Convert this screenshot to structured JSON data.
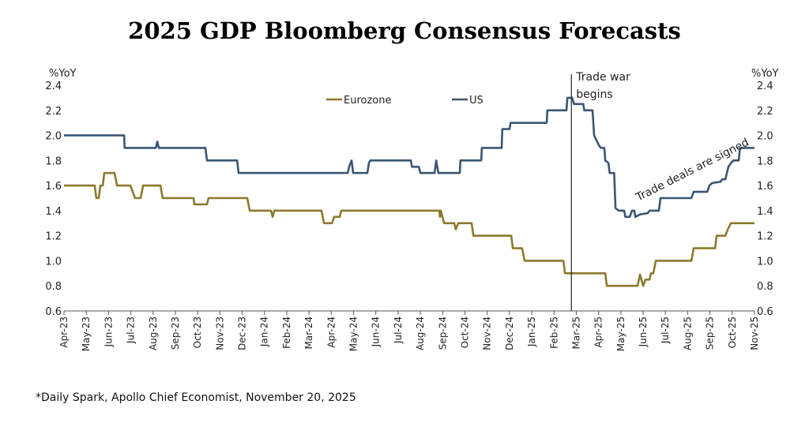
{
  "chart_data": {
    "type": "line",
    "title": "2025 GDP Bloomberg Consensus Forecasts",
    "ylabel_left": "%YoY",
    "ylabel_right": "%YoY",
    "ylim": [
      0.6,
      2.4
    ],
    "yticks": [
      "0.6",
      "0.8",
      "1.0",
      "1.2",
      "1.4",
      "1.6",
      "1.8",
      "2.0",
      "2.2",
      "2.4"
    ],
    "x_categories": [
      "Apr-23",
      "May-23",
      "Jun-23",
      "Jul-23",
      "Aug-23",
      "Sep-23",
      "Oct-23",
      "Nov-23",
      "Dec-23",
      "Jan-24",
      "Feb-24",
      "Mar-24",
      "Apr-24",
      "May-24",
      "Jun-24",
      "Jul-24",
      "Aug-24",
      "Sep-24",
      "Oct-24",
      "Nov-24",
      "Dec-24",
      "Jan-25",
      "Feb-25",
      "Mar-25",
      "Apr-25",
      "May-25",
      "Jun-25",
      "Jul-25",
      "Aug-25",
      "Sep-25",
      "Oct-25",
      "Nov-25"
    ],
    "x_unit": "months since Apr-23",
    "grid": false,
    "legend": "top-center",
    "series": [
      {
        "name": "Eurozone",
        "color": "#8C7A2E",
        "points": [
          [
            0,
            1.6
          ],
          [
            1.38,
            1.6
          ],
          [
            1.45,
            1.5
          ],
          [
            1.56,
            1.5
          ],
          [
            1.63,
            1.6
          ],
          [
            1.74,
            1.6
          ],
          [
            1.81,
            1.7
          ],
          [
            2.27,
            1.7
          ],
          [
            2.38,
            1.6
          ],
          [
            2.98,
            1.6
          ],
          [
            3.09,
            1.55
          ],
          [
            3.19,
            1.5
          ],
          [
            3.44,
            1.5
          ],
          [
            3.55,
            1.6
          ],
          [
            4.33,
            1.6
          ],
          [
            4.43,
            1.5
          ],
          [
            5.82,
            1.5
          ],
          [
            5.85,
            1.45
          ],
          [
            6.42,
            1.45
          ],
          [
            6.49,
            1.5
          ],
          [
            8.23,
            1.5
          ],
          [
            8.34,
            1.4
          ],
          [
            9.29,
            1.4
          ],
          [
            9.37,
            1.35
          ],
          [
            9.44,
            1.4
          ],
          [
            11.56,
            1.4
          ],
          [
            11.67,
            1.3
          ],
          [
            12.03,
            1.3
          ],
          [
            12.13,
            1.35
          ],
          [
            12.38,
            1.35
          ],
          [
            12.45,
            1.4
          ],
          [
            16.85,
            1.4
          ],
          [
            16.88,
            1.35
          ],
          [
            16.92,
            1.4
          ],
          [
            17.06,
            1.3
          ],
          [
            17.52,
            1.3
          ],
          [
            17.59,
            1.25
          ],
          [
            17.7,
            1.3
          ],
          [
            18.3,
            1.3
          ],
          [
            18.38,
            1.2
          ],
          [
            20.08,
            1.2
          ],
          [
            20.15,
            1.1
          ],
          [
            20.57,
            1.1
          ],
          [
            20.68,
            1.0
          ],
          [
            22.42,
            1.0
          ],
          [
            22.49,
            0.9
          ],
          [
            24.3,
            0.9
          ],
          [
            24.37,
            0.8
          ],
          [
            25.75,
            0.8
          ],
          [
            25.86,
            0.89
          ],
          [
            26.0,
            0.8
          ],
          [
            26.11,
            0.85
          ],
          [
            26.29,
            0.85
          ],
          [
            26.35,
            0.9
          ],
          [
            26.46,
            0.9
          ],
          [
            26.57,
            1.0
          ],
          [
            28.17,
            1.0
          ],
          [
            28.27,
            1.1
          ],
          [
            29.23,
            1.1
          ],
          [
            29.3,
            1.2
          ],
          [
            29.69,
            1.2
          ],
          [
            29.8,
            1.25
          ],
          [
            29.94,
            1.3
          ],
          [
            31,
            1.3
          ]
        ]
      },
      {
        "name": "US",
        "color": "#3A5674",
        "points": [
          [
            0,
            2.0
          ],
          [
            2.7,
            2.0
          ],
          [
            2.72,
            1.9
          ],
          [
            4.12,
            1.9
          ],
          [
            4.19,
            1.95
          ],
          [
            4.26,
            1.9
          ],
          [
            6.35,
            1.9
          ],
          [
            6.42,
            1.8
          ],
          [
            7.77,
            1.8
          ],
          [
            7.84,
            1.7
          ],
          [
            12.74,
            1.7
          ],
          [
            12.8,
            1.75
          ],
          [
            12.91,
            1.8
          ],
          [
            12.98,
            1.7
          ],
          [
            13.62,
            1.7
          ],
          [
            13.69,
            1.78
          ],
          [
            13.75,
            1.8
          ],
          [
            15.57,
            1.8
          ],
          [
            15.62,
            1.75
          ],
          [
            15.93,
            1.75
          ],
          [
            16.0,
            1.7
          ],
          [
            16.64,
            1.7
          ],
          [
            16.71,
            1.8
          ],
          [
            16.81,
            1.7
          ],
          [
            17.77,
            1.7
          ],
          [
            17.8,
            1.8
          ],
          [
            18.73,
            1.8
          ],
          [
            18.76,
            1.9
          ],
          [
            19.65,
            1.9
          ],
          [
            19.68,
            2.05
          ],
          [
            20.0,
            2.05
          ],
          [
            20.05,
            2.1
          ],
          [
            21.67,
            2.1
          ],
          [
            21.7,
            2.2
          ],
          [
            22.56,
            2.2
          ],
          [
            22.6,
            2.3
          ],
          [
            22.81,
            2.3
          ],
          [
            22.9,
            2.25
          ],
          [
            23.31,
            2.25
          ],
          [
            23.36,
            2.2
          ],
          [
            23.73,
            2.2
          ],
          [
            23.8,
            2.0
          ],
          [
            24.02,
            1.92
          ],
          [
            24.1,
            1.9
          ],
          [
            24.26,
            1.9
          ],
          [
            24.3,
            1.8
          ],
          [
            24.44,
            1.78
          ],
          [
            24.5,
            1.7
          ],
          [
            24.7,
            1.7
          ],
          [
            24.76,
            1.42
          ],
          [
            24.9,
            1.4
          ],
          [
            25.15,
            1.4
          ],
          [
            25.2,
            1.35
          ],
          [
            25.4,
            1.35
          ],
          [
            25.5,
            1.4
          ],
          [
            25.6,
            1.4
          ],
          [
            25.65,
            1.35
          ],
          [
            25.86,
            1.37
          ],
          [
            26.2,
            1.38
          ],
          [
            26.3,
            1.4
          ],
          [
            26.71,
            1.4
          ],
          [
            26.78,
            1.5
          ],
          [
            28.17,
            1.5
          ],
          [
            28.27,
            1.55
          ],
          [
            28.88,
            1.55
          ],
          [
            28.98,
            1.6
          ],
          [
            29.1,
            1.62
          ],
          [
            29.48,
            1.63
          ],
          [
            29.55,
            1.65
          ],
          [
            29.69,
            1.65
          ],
          [
            29.83,
            1.75
          ],
          [
            29.95,
            1.78
          ],
          [
            30.05,
            1.8
          ],
          [
            30.29,
            1.8
          ],
          [
            30.35,
            1.9
          ],
          [
            31,
            1.9
          ]
        ]
      }
    ],
    "annotations": [
      {
        "text": "Trade war begins",
        "line1": "Trade war",
        "line2": "begins",
        "x": 22.78
      },
      {
        "text": "Trade deals are signed"
      }
    ],
    "footnote": "*Daily Spark, Apollo Chief Economist, November 20, 2025"
  }
}
